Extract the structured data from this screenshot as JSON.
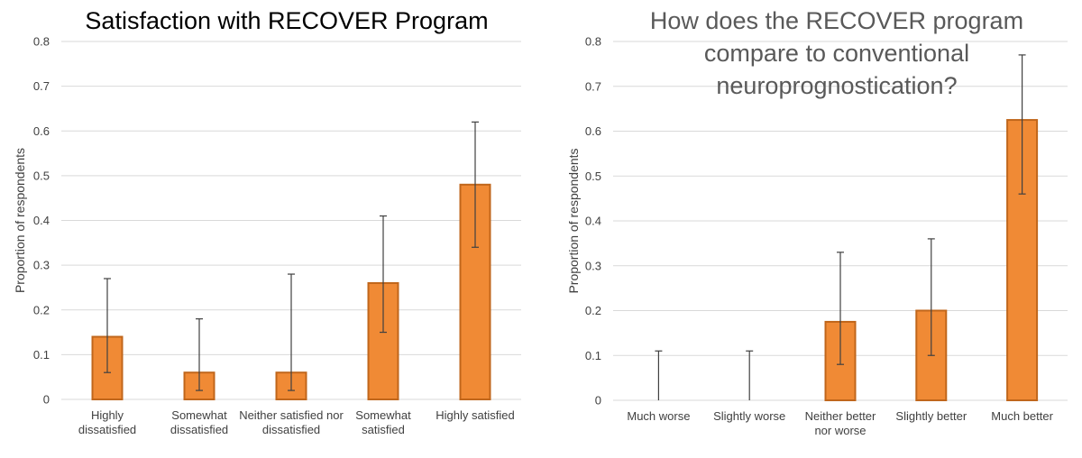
{
  "chart_data": [
    {
      "type": "bar",
      "title": "Satisfaction with RECOVER Program",
      "xlabel": "",
      "ylabel": "Proportion of respondents",
      "ylim": [
        0,
        0.8
      ],
      "yticks": [
        "0",
        "0.1",
        "0.2",
        "0.3",
        "0.4",
        "0.5",
        "0.6",
        "0.7",
        "0.8"
      ],
      "grid": true,
      "categories": [
        [
          "Highly",
          "dissatisfied"
        ],
        [
          "Somewhat",
          "dissatisfied"
        ],
        [
          "Neither satisfied nor",
          "dissatisfied"
        ],
        [
          "Somewhat",
          "satisfied"
        ],
        [
          "Highly satisfied"
        ]
      ],
      "values": [
        0.14,
        0.06,
        0.06,
        0.26,
        0.48
      ],
      "error_low": [
        0.06,
        0.02,
        0.02,
        0.15,
        0.34
      ],
      "error_high": [
        0.27,
        0.18,
        0.28,
        0.41,
        0.62
      ],
      "bar_color": "#f08a35",
      "bar_edge_color": "#c0661b"
    },
    {
      "type": "bar",
      "title": [
        "How does the RECOVER program",
        "compare to conventional",
        "neuroprognostication?"
      ],
      "xlabel": "",
      "ylabel": "Proportion of respondents",
      "ylim": [
        0,
        0.8
      ],
      "yticks": [
        "0",
        "0.1",
        "0.2",
        "0.3",
        "0.4",
        "0.5",
        "0.6",
        "0.7",
        "0.8"
      ],
      "grid": true,
      "categories": [
        [
          "Much worse"
        ],
        [
          "Slightly worse"
        ],
        [
          "Neither better",
          "nor worse"
        ],
        [
          "Slightly better"
        ],
        [
          "Much better"
        ]
      ],
      "values": [
        0,
        0,
        0.175,
        0.2,
        0.625
      ],
      "error_low": [
        0,
        0,
        0.08,
        0.1,
        0.46
      ],
      "error_high": [
        0.11,
        0.11,
        0.33,
        0.36,
        0.77
      ],
      "bar_color": "#f08a35",
      "bar_edge_color": "#c0661b"
    }
  ]
}
